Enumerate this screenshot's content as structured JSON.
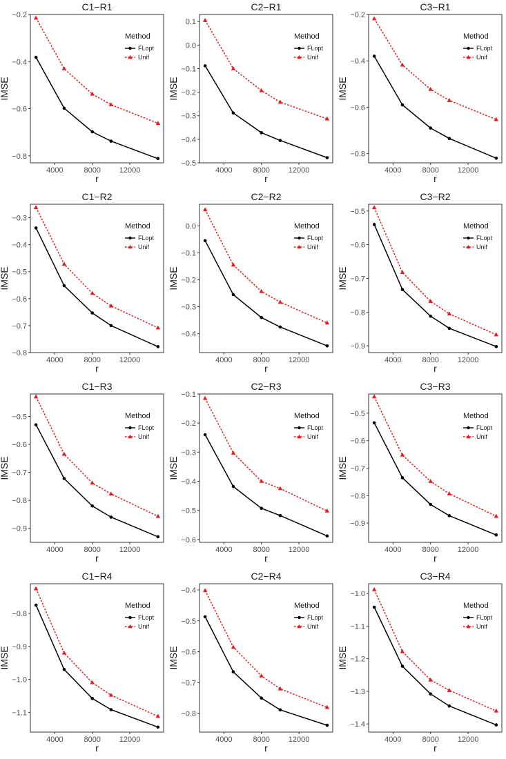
{
  "figure": {
    "legend_title": "Method",
    "colors": {
      "FLopt": "#000000",
      "Unif": "#e41a1c"
    }
  },
  "chart_data": [
    {
      "type": "line",
      "title": "C1−R1",
      "xlabel": "r",
      "ylabel": "IMSE",
      "x": [
        2000,
        5000,
        8000,
        10000,
        15000
      ],
      "xticks": [
        "4000",
        "8000",
        "12000"
      ],
      "ylim": [
        -0.83,
        -0.2
      ],
      "yticks": [
        -0.8,
        -0.6,
        -0.4,
        -0.2
      ],
      "ytick_labels": [
        "−0.8",
        "−0.6",
        "−0.4",
        "−0.2"
      ],
      "grid": false,
      "legend_position": "top-right",
      "series": [
        {
          "name": "FLopt",
          "values": [
            -0.382,
            -0.598,
            -0.698,
            -0.738,
            -0.812
          ]
        },
        {
          "name": "Unif",
          "values": [
            -0.215,
            -0.43,
            -0.538,
            -0.583,
            -0.662
          ]
        }
      ]
    },
    {
      "type": "line",
      "title": "C2−R1",
      "xlabel": "r",
      "ylabel": "IMSE",
      "x": [
        2000,
        5000,
        8000,
        10000,
        15000
      ],
      "xticks": [
        "4000",
        "8000",
        "12000"
      ],
      "ylim": [
        -0.5,
        0.13
      ],
      "yticks": [
        -0.5,
        -0.4,
        -0.3,
        -0.2,
        -0.1,
        0,
        0.1
      ],
      "ytick_labels": [
        "−0.5",
        "−0.4",
        "−0.3",
        "−0.2",
        "−0.1",
        "0.0",
        "0.1"
      ],
      "grid": false,
      "legend_position": "top-right",
      "series": [
        {
          "name": "FLopt",
          "values": [
            -0.088,
            -0.288,
            -0.372,
            -0.405,
            -0.478
          ]
        },
        {
          "name": "Unif",
          "values": [
            0.105,
            -0.1,
            -0.193,
            -0.242,
            -0.313
          ]
        }
      ]
    },
    {
      "type": "line",
      "title": "C3−R1",
      "xlabel": "r",
      "ylabel": "IMSE",
      "x": [
        2000,
        5000,
        8000,
        10000,
        15000
      ],
      "xticks": [
        "4000",
        "8000",
        "12000"
      ],
      "ylim": [
        -0.84,
        -0.2
      ],
      "yticks": [
        -0.8,
        -0.6,
        -0.4,
        -0.2
      ],
      "ytick_labels": [
        "−0.8",
        "−0.6",
        "−0.4",
        "−0.2"
      ],
      "grid": false,
      "legend_position": "top-right",
      "series": [
        {
          "name": "FLopt",
          "values": [
            -0.38,
            -0.59,
            -0.69,
            -0.735,
            -0.82
          ]
        },
        {
          "name": "Unif",
          "values": [
            -0.218,
            -0.418,
            -0.523,
            -0.571,
            -0.653
          ]
        }
      ]
    },
    {
      "type": "line",
      "title": "C1−R2",
      "xlabel": "r",
      "ylabel": "IMSE",
      "x": [
        2000,
        5000,
        8000,
        10000,
        15000
      ],
      "xticks": [
        "4000",
        "8000",
        "12000"
      ],
      "ylim": [
        -0.8,
        -0.25
      ],
      "yticks": [
        -0.8,
        -0.7,
        -0.6,
        -0.5,
        -0.4,
        -0.3
      ],
      "ytick_labels": [
        "−0.8",
        "−0.7",
        "−0.6",
        "−0.5",
        "−0.4",
        "−0.3"
      ],
      "grid": false,
      "legend_position": "top-right",
      "series": [
        {
          "name": "FLopt",
          "values": [
            -0.338,
            -0.552,
            -0.653,
            -0.7,
            -0.778
          ]
        },
        {
          "name": "Unif",
          "values": [
            -0.262,
            -0.472,
            -0.58,
            -0.627,
            -0.708
          ]
        }
      ]
    },
    {
      "type": "line",
      "title": "C2−R2",
      "xlabel": "r",
      "ylabel": "IMSE",
      "x": [
        2000,
        5000,
        8000,
        10000,
        15000
      ],
      "xticks": [
        "4000",
        "8000",
        "12000"
      ],
      "ylim": [
        -0.47,
        0.08
      ],
      "yticks": [
        -0.4,
        -0.3,
        -0.2,
        -0.1,
        0
      ],
      "ytick_labels": [
        "−0.4",
        "−0.3",
        "−0.2",
        "−0.1",
        "0.0"
      ],
      "grid": false,
      "legend_position": "top-right",
      "series": [
        {
          "name": "FLopt",
          "values": [
            -0.055,
            -0.255,
            -0.34,
            -0.375,
            -0.445
          ]
        },
        {
          "name": "Unif",
          "values": [
            0.06,
            -0.145,
            -0.243,
            -0.283,
            -0.36
          ]
        }
      ]
    },
    {
      "type": "line",
      "title": "C3−R2",
      "xlabel": "r",
      "ylabel": "IMSE",
      "x": [
        2000,
        5000,
        8000,
        10000,
        15000
      ],
      "xticks": [
        "4000",
        "8000",
        "12000"
      ],
      "ylim": [
        -0.92,
        -0.48
      ],
      "yticks": [
        -0.9,
        -0.8,
        -0.7,
        -0.6,
        -0.5
      ],
      "ytick_labels": [
        "−0.9",
        "−0.8",
        "−0.7",
        "−0.6",
        "−0.5"
      ],
      "grid": false,
      "legend_position": "top-right",
      "series": [
        {
          "name": "FLopt",
          "values": [
            -0.54,
            -0.733,
            -0.812,
            -0.848,
            -0.902
          ]
        },
        {
          "name": "Unif",
          "values": [
            -0.49,
            -0.682,
            -0.768,
            -0.805,
            -0.867
          ]
        }
      ]
    },
    {
      "type": "line",
      "title": "C1−R3",
      "xlabel": "r",
      "ylabel": "IMSE",
      "x": [
        2000,
        5000,
        8000,
        10000,
        15000
      ],
      "xticks": [
        "4000",
        "8000",
        "12000"
      ],
      "ylim": [
        -0.95,
        -0.42
      ],
      "yticks": [
        -0.9,
        -0.8,
        -0.7,
        -0.6,
        -0.5
      ],
      "ytick_labels": [
        "−0.9",
        "−0.8",
        "−0.7",
        "−0.6",
        "−0.5"
      ],
      "grid": false,
      "legend_position": "top-right",
      "series": [
        {
          "name": "FLopt",
          "values": [
            -0.53,
            -0.722,
            -0.82,
            -0.86,
            -0.93
          ]
        },
        {
          "name": "Unif",
          "values": [
            -0.43,
            -0.635,
            -0.738,
            -0.777,
            -0.857
          ]
        }
      ]
    },
    {
      "type": "line",
      "title": "C2−R3",
      "xlabel": "r",
      "ylabel": "IMSE",
      "x": [
        2000,
        5000,
        8000,
        10000,
        15000
      ],
      "xticks": [
        "4000",
        "8000",
        "12000"
      ],
      "ylim": [
        -0.61,
        -0.1
      ],
      "yticks": [
        -0.6,
        -0.5,
        -0.4,
        -0.3,
        -0.2,
        -0.1
      ],
      "ytick_labels": [
        "−0.6",
        "−0.5",
        "−0.4",
        "−0.3",
        "−0.2",
        "−0.1"
      ],
      "grid": false,
      "legend_position": "top-right",
      "series": [
        {
          "name": "FLopt",
          "values": [
            -0.24,
            -0.418,
            -0.493,
            -0.518,
            -0.588
          ]
        },
        {
          "name": "Unif",
          "values": [
            -0.115,
            -0.303,
            -0.4,
            -0.425,
            -0.502
          ]
        }
      ]
    },
    {
      "type": "line",
      "title": "C3−R3",
      "xlabel": "r",
      "ylabel": "IMSE",
      "x": [
        2000,
        5000,
        8000,
        10000,
        15000
      ],
      "xticks": [
        "4000",
        "8000",
        "12000"
      ],
      "ylim": [
        -0.97,
        -0.43
      ],
      "yticks": [
        -0.9,
        -0.8,
        -0.7,
        -0.6,
        -0.5
      ],
      "ytick_labels": [
        "−0.9",
        "−0.8",
        "−0.7",
        "−0.6",
        "−0.5"
      ],
      "grid": false,
      "legend_position": "top-right",
      "series": [
        {
          "name": "FLopt",
          "values": [
            -0.535,
            -0.735,
            -0.832,
            -0.873,
            -0.943
          ]
        },
        {
          "name": "Unif",
          "values": [
            -0.44,
            -0.652,
            -0.748,
            -0.793,
            -0.875
          ]
        }
      ]
    },
    {
      "type": "line",
      "title": "C1−R4",
      "xlabel": "r",
      "ylabel": "IMSE",
      "x": [
        2000,
        5000,
        8000,
        10000,
        15000
      ],
      "xticks": [
        "4000",
        "8000",
        "12000"
      ],
      "ylim": [
        -1.16,
        -0.71
      ],
      "yticks": [
        -1.1,
        -1.0,
        -0.9,
        -0.8
      ],
      "ytick_labels": [
        "−1.1",
        "−1.0",
        "−0.9",
        "−0.8"
      ],
      "grid": false,
      "legend_position": "top-right",
      "series": [
        {
          "name": "FLopt",
          "values": [
            -0.775,
            -0.97,
            -1.058,
            -1.092,
            -1.145
          ]
        },
        {
          "name": "Unif",
          "values": [
            -0.725,
            -0.92,
            -1.01,
            -1.048,
            -1.112
          ]
        }
      ]
    },
    {
      "type": "line",
      "title": "C2−R4",
      "xlabel": "r",
      "ylabel": "IMSE",
      "x": [
        2000,
        5000,
        8000,
        10000,
        15000
      ],
      "xticks": [
        "4000",
        "8000",
        "12000"
      ],
      "ylim": [
        -0.86,
        -0.38
      ],
      "yticks": [
        -0.8,
        -0.7,
        -0.6,
        -0.5,
        -0.4
      ],
      "ytick_labels": [
        "−0.8",
        "−0.7",
        "−0.6",
        "−0.5",
        "−0.4"
      ],
      "grid": false,
      "legend_position": "top-right",
      "series": [
        {
          "name": "FLopt",
          "values": [
            -0.487,
            -0.665,
            -0.75,
            -0.788,
            -0.838
          ]
        },
        {
          "name": "Unif",
          "values": [
            -0.402,
            -0.585,
            -0.678,
            -0.72,
            -0.78
          ]
        }
      ]
    },
    {
      "type": "line",
      "title": "C3−R4",
      "xlabel": "r",
      "ylabel": "IMSE",
      "x": [
        2000,
        5000,
        8000,
        10000,
        15000
      ],
      "xticks": [
        "4000",
        "8000",
        "12000"
      ],
      "ylim": [
        -1.425,
        -0.97
      ],
      "yticks": [
        -1.4,
        -1.3,
        -1.2,
        -1.1,
        -1.0
      ],
      "ytick_labels": [
        "−1.4",
        "−1.3",
        "−1.2",
        "−1.1",
        "−1.0"
      ],
      "grid": false,
      "legend_position": "top-right",
      "series": [
        {
          "name": "FLopt",
          "values": [
            -1.042,
            -1.223,
            -1.308,
            -1.345,
            -1.403
          ]
        },
        {
          "name": "Unif",
          "values": [
            -0.988,
            -1.178,
            -1.265,
            -1.297,
            -1.36
          ]
        }
      ]
    }
  ]
}
